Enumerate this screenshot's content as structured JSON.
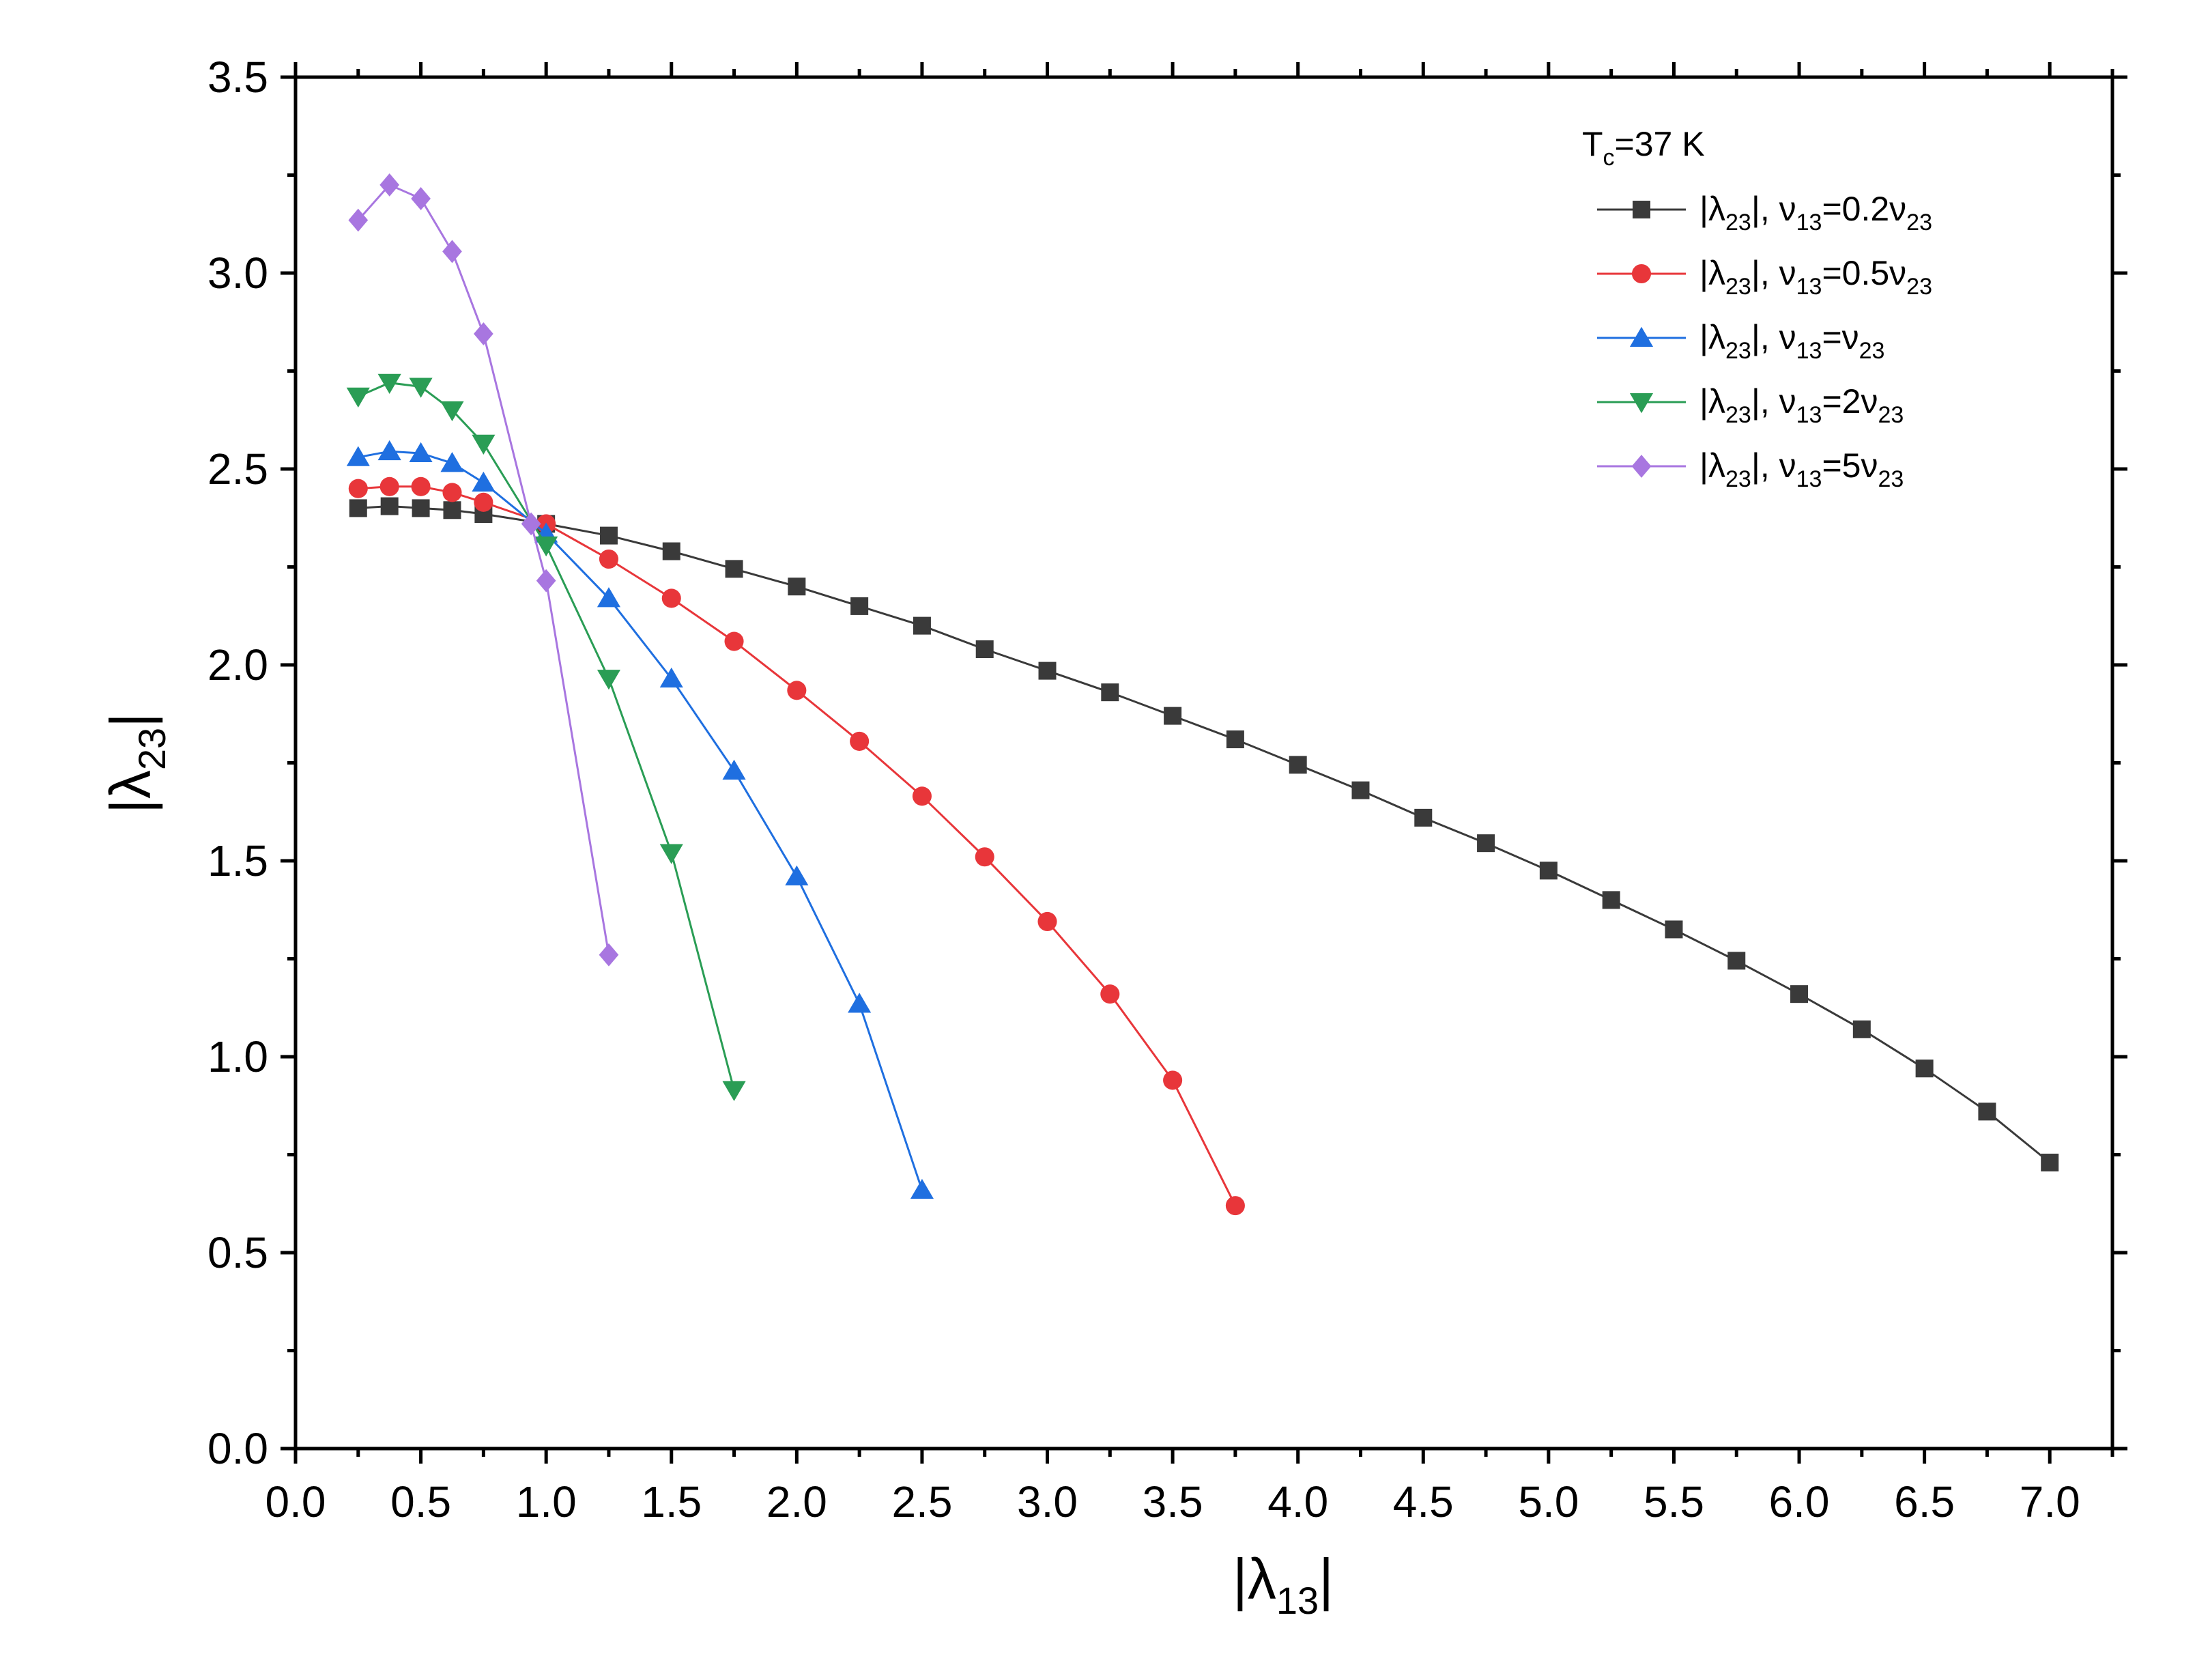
{
  "chart_data": {
    "type": "line",
    "xlabel": "|λ13|",
    "xlabel_main": "|λ",
    "xlabel_sub": "13",
    "xlabel_end": "|",
    "ylabel": "|λ23|",
    "ylabel_main": "|λ",
    "ylabel_sub": "23",
    "ylabel_end": "|",
    "xlim": [
      0,
      7.25
    ],
    "ylim": [
      0,
      3.5
    ],
    "x_ticks": [
      "0.0",
      "0.5",
      "1.0",
      "1.5",
      "2.0",
      "2.5",
      "3.0",
      "3.5",
      "4.0",
      "4.5",
      "5.0",
      "5.5",
      "6.0",
      "6.5",
      "7.0"
    ],
    "y_ticks": [
      "0.0",
      "0.5",
      "1.0",
      "1.5",
      "2.0",
      "2.5",
      "3.0",
      "3.5"
    ],
    "grid": false,
    "legend_position": "top-right",
    "legend_title": "Tc=37 K",
    "legend_title_parts": {
      "main": "T",
      "sub": "c",
      "rest": "=37 K"
    },
    "series": [
      {
        "name": "|λ23|, ν13=0.2ν23",
        "label_prefix": "|λ",
        "label_sub1": "23",
        "label_mid": "|, ν",
        "label_sub2": "13",
        "label_rest": "=0.2ν",
        "label_sub3": "23",
        "color": "#3a3a3a",
        "marker": "square",
        "x": [
          0.25,
          0.375,
          0.5,
          0.625,
          0.75,
          1.0,
          1.25,
          1.5,
          1.75,
          2.0,
          2.25,
          2.5,
          2.75,
          3.0,
          3.25,
          3.5,
          3.75,
          4.0,
          4.25,
          4.5,
          4.75,
          5.0,
          5.25,
          5.5,
          5.75,
          6.0,
          6.25,
          6.5,
          6.75,
          7.0
        ],
        "y": [
          2.4,
          2.405,
          2.4,
          2.395,
          2.385,
          2.36,
          2.33,
          2.29,
          2.245,
          2.2,
          2.15,
          2.1,
          2.04,
          1.985,
          1.93,
          1.87,
          1.81,
          1.745,
          1.68,
          1.61,
          1.545,
          1.475,
          1.4,
          1.325,
          1.245,
          1.16,
          1.07,
          0.97,
          0.86,
          0.73
        ]
      },
      {
        "name": "|λ23|, ν13=0.5ν23",
        "label_prefix": "|λ",
        "label_sub1": "23",
        "label_mid": "|, ν",
        "label_sub2": "13",
        "label_rest": "=0.5ν",
        "label_sub3": "23",
        "color": "#e8363a",
        "marker": "circle",
        "x": [
          0.25,
          0.375,
          0.5,
          0.625,
          0.75,
          1.0,
          1.25,
          1.5,
          1.75,
          2.0,
          2.25,
          2.5,
          2.75,
          3.0,
          3.25,
          3.5,
          3.75
        ],
        "y": [
          2.45,
          2.455,
          2.455,
          2.44,
          2.415,
          2.36,
          2.27,
          2.17,
          2.06,
          1.935,
          1.805,
          1.665,
          1.51,
          1.345,
          1.16,
          0.94,
          0.62
        ]
      },
      {
        "name": "|λ23|, ν13=ν23",
        "label_prefix": "|λ",
        "label_sub1": "23",
        "label_mid": "|, ν",
        "label_sub2": "13",
        "label_rest": "=ν",
        "label_sub3": "23",
        "color": "#1f6fe0",
        "marker": "triangle-up",
        "x": [
          0.25,
          0.375,
          0.5,
          0.625,
          0.75,
          1.0,
          1.25,
          1.5,
          1.75,
          2.0,
          2.25,
          2.5
        ],
        "y": [
          2.53,
          2.545,
          2.54,
          2.515,
          2.465,
          2.335,
          2.17,
          1.965,
          1.73,
          1.46,
          1.135,
          0.66
        ]
      },
      {
        "name": "|λ23|, ν13=2ν23",
        "label_prefix": "|λ",
        "label_sub1": "23",
        "label_mid": "|, ν",
        "label_sub2": "13",
        "label_rest": "=2ν",
        "label_sub3": "23",
        "color": "#2a9d55",
        "marker": "triangle-down",
        "x": [
          0.25,
          0.375,
          0.5,
          0.625,
          0.75,
          1.0,
          1.25,
          1.5,
          1.75
        ],
        "y": [
          2.685,
          2.72,
          2.71,
          2.65,
          2.565,
          2.305,
          1.965,
          1.52,
          0.915
        ]
      },
      {
        "name": "|λ23|, ν13=5ν23",
        "label_prefix": "|λ",
        "label_sub1": "23",
        "label_mid": "|, ν",
        "label_sub2": "13",
        "label_rest": "=5ν",
        "label_sub3": "23",
        "color": "#a876e0",
        "marker": "diamond",
        "x": [
          0.25,
          0.375,
          0.5,
          0.625,
          0.75,
          0.94,
          1.0,
          1.25
        ],
        "y": [
          3.135,
          3.225,
          3.19,
          3.055,
          2.845,
          2.36,
          2.215,
          1.26
        ]
      }
    ]
  }
}
